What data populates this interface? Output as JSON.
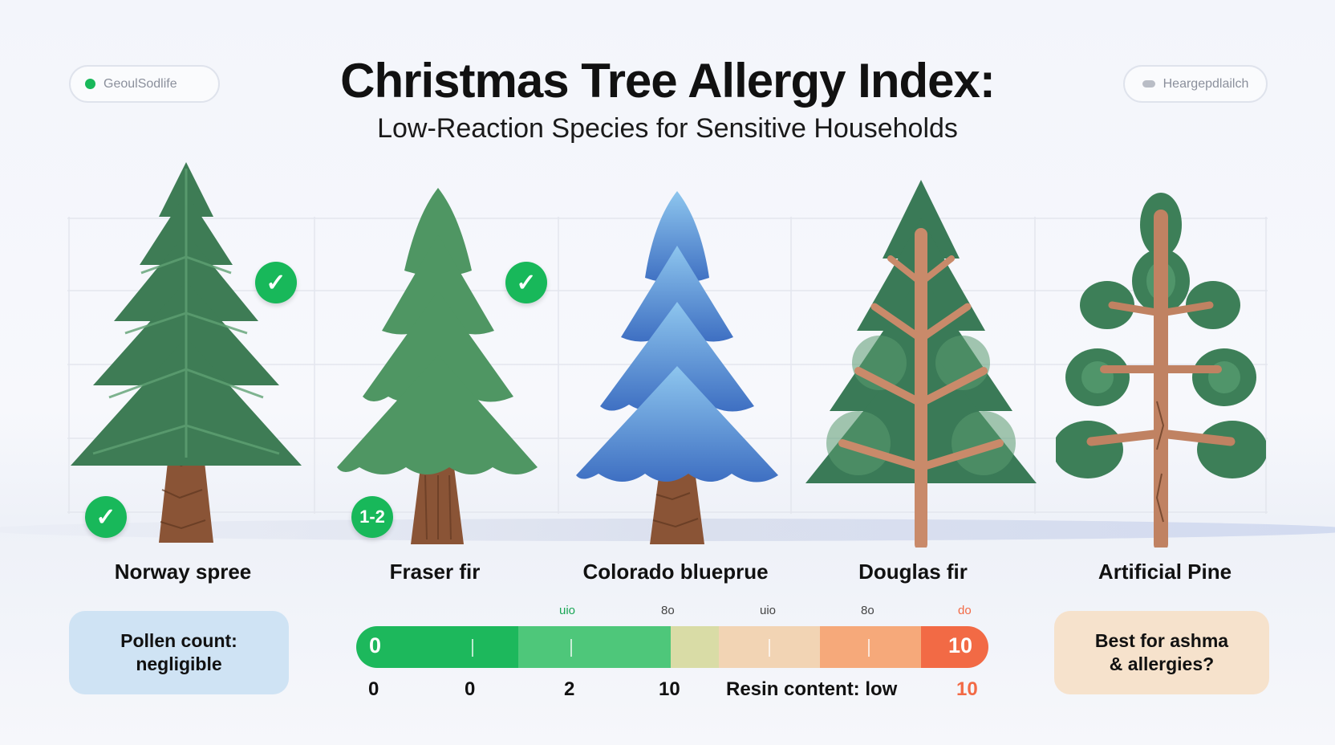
{
  "header": {
    "left_pill_text": "GeoulSodlife",
    "right_pill_text": "Heargepdlailch",
    "title": "Christmas Tree Allergy Index:",
    "subtitle": "Low-Reaction Species for Sensitive Households"
  },
  "trees": [
    {
      "name": "Norway spree",
      "color": "#3f7d56",
      "icon": "spruce-tree-icon"
    },
    {
      "name": "Fraser fir",
      "color": "#4f9a63",
      "icon": "fir-tree-icon"
    },
    {
      "name": "Colorado blueprue",
      "color": "#4f86d0",
      "icon": "blue-spruce-tree-icon"
    },
    {
      "name": "Douglas fir",
      "color": "#3a7a57",
      "icon": "douglas-fir-tree-icon"
    },
    {
      "name": "Artificial Pine",
      "color": "#3d7f58",
      "icon": "pine-tree-icon"
    }
  ],
  "badges": {
    "fraser_range": "1-2",
    "check_symbol": "✓"
  },
  "cards": {
    "left_line1": "Pollen count:",
    "left_line2": "negligible",
    "right_line1": "Best for ashma",
    "right_line2": "& allergies?"
  },
  "scale": {
    "start_label": "0",
    "end_label": "10",
    "top_labels": [
      "uio",
      "8o",
      "uio",
      "8o",
      "do"
    ],
    "bottom_labels": [
      "0",
      "0",
      "2",
      "10",
      "Resin content: low",
      "10"
    ],
    "colors": [
      "#1db85c",
      "#4ec77a",
      "#d9dca6",
      "#f2d4b4",
      "#f6a97a",
      "#f26a45"
    ]
  }
}
